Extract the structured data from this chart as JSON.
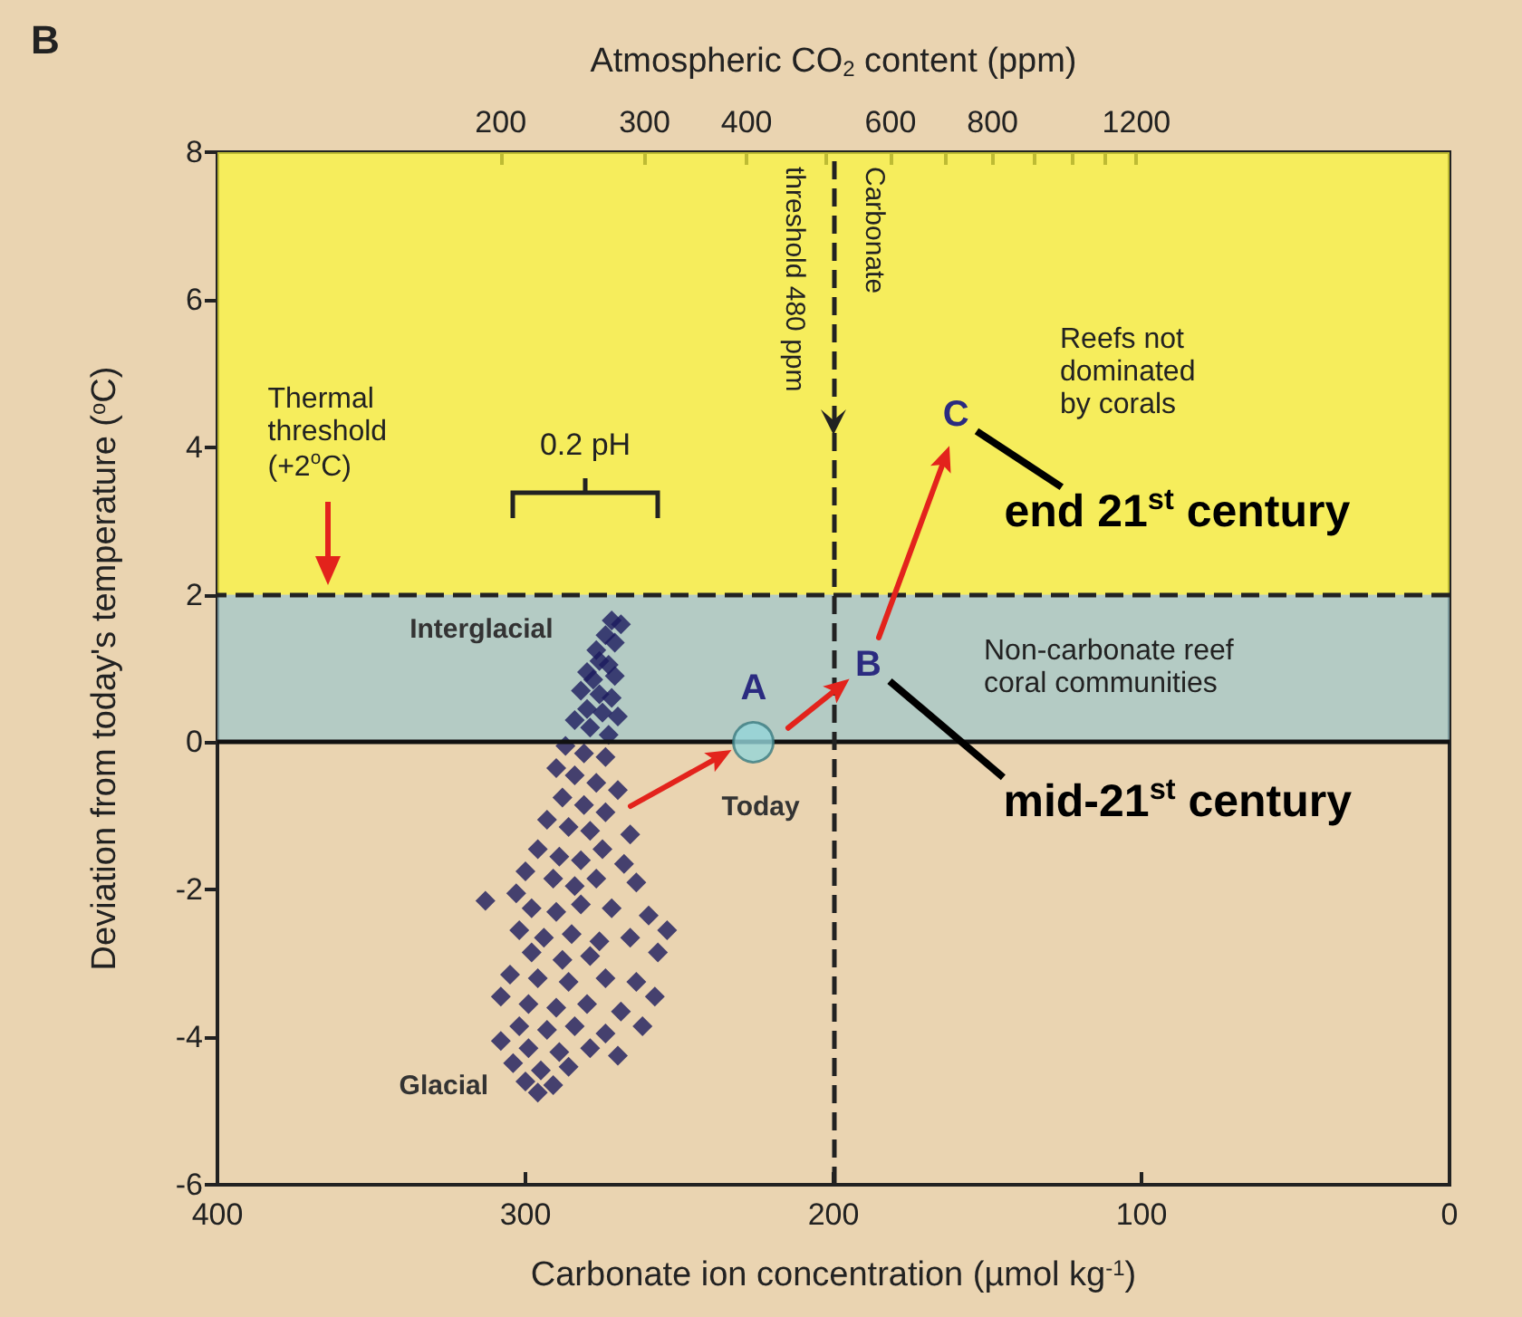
{
  "chart_data": {
    "type": "scatter",
    "title": "B",
    "xlabel": "Carbonate ion concentration (µmol kg$^{-1}$)",
    "x2label": "Atmospheric CO$_{2}$ content (ppm)",
    "ylabel": "Deviation from today's temperature ($^{o}$C)",
    "xlim": [
      400,
      0
    ],
    "xticks": [
      400,
      300,
      200,
      100,
      0
    ],
    "x2lim": [
      90,
      2900
    ],
    "log": "x2",
    "x2ticks": [
      200,
      300,
      400,
      {
        "value": 500,
        "label": null
      },
      600,
      {
        "value": 700,
        "label": null
      },
      800,
      {
        "value": 900,
        "label": null
      },
      {
        "value": 1000,
        "label": null
      },
      {
        "value": 1100,
        "label": null
      },
      1200
    ],
    "ylim": [
      -6,
      8
    ],
    "yticks": [
      -6,
      -4,
      -2,
      0,
      2,
      4,
      6,
      8
    ],
    "grid": false,
    "marker": "diamond",
    "series": [
      {
        "type": "scatter",
        "color": "#1c1a5e",
        "x": [
          272,
          269,
          274,
          271,
          277,
          276,
          273,
          280,
          278,
          271,
          282,
          276,
          272,
          280,
          275,
          284,
          270,
          279,
          273,
          287,
          281,
          274,
          290,
          284,
          277,
          270,
          288,
          281,
          274,
          293,
          286,
          279,
          266,
          296,
          289,
          282,
          275,
          268,
          300,
          291,
          284,
          277,
          264,
          313,
          303,
          298,
          290,
          282,
          272,
          260,
          254,
          302,
          294,
          285,
          276,
          266,
          257,
          298,
          288,
          279,
          305,
          296,
          286,
          274,
          264,
          258,
          308,
          299,
          290,
          280,
          269,
          302,
          293,
          284,
          274,
          262,
          308,
          299,
          289,
          279,
          270,
          304,
          295,
          286,
          300,
          291,
          296
        ],
        "values": [
          1.65,
          1.6,
          1.45,
          1.35,
          1.25,
          1.1,
          1.05,
          0.95,
          0.85,
          0.9,
          0.7,
          0.65,
          0.6,
          0.45,
          0.4,
          0.3,
          0.35,
          0.2,
          0.1,
          -0.05,
          -0.15,
          -0.2,
          -0.35,
          -0.45,
          -0.55,
          -0.65,
          -0.75,
          -0.85,
          -0.95,
          -1.05,
          -1.15,
          -1.2,
          -1.25,
          -1.45,
          -1.55,
          -1.6,
          -1.45,
          -1.65,
          -1.75,
          -1.85,
          -1.95,
          -1.85,
          -1.9,
          -2.15,
          -2.05,
          -2.25,
          -2.3,
          -2.2,
          -2.25,
          -2.35,
          -2.55,
          -2.55,
          -2.65,
          -2.6,
          -2.7,
          -2.65,
          -2.85,
          -2.85,
          -2.95,
          -2.9,
          -3.15,
          -3.2,
          -3.25,
          -3.2,
          -3.25,
          -3.45,
          -3.45,
          -3.55,
          -3.6,
          -3.55,
          -3.65,
          -3.85,
          -3.9,
          -3.85,
          -3.95,
          -3.85,
          -4.05,
          -4.15,
          -4.2,
          -4.15,
          -4.25,
          -4.35,
          -4.45,
          -4.4,
          -4.6,
          -4.65,
          -4.75
        ]
      },
      {
        "type": "scatter",
        "color": "#93d5da",
        "marker": "circle",
        "x": [
          226
        ],
        "values": [
          0
        ]
      }
    ],
    "bands": [
      {
        "axis": "y",
        "from": 0,
        "to": 2,
        "color": "#9fc8cc",
        "label": "Non-carbonate reef coral communities"
      },
      {
        "axis": "y",
        "from": 2,
        "to": 8,
        "color": "#fbf63c",
        "label": "Reefs not dominated by corals"
      }
    ],
    "ref_lines": [
      {
        "axis": "y",
        "value": 0,
        "color": "#111111",
        "line_style": "solid"
      },
      {
        "axis": "y",
        "value": 2,
        "color": "#222222",
        "line_style": "dashed"
      },
      {
        "axis": "x",
        "value": 200,
        "color": "#222222",
        "line_style": "dashed",
        "label": "Carbonate threshold 480 ppm"
      }
    ],
    "annotations": [
      {
        "text": "A",
        "x": 226,
        "y": 0
      },
      {
        "text": "Today",
        "x": 226,
        "y": 0
      },
      "B",
      "C",
      "end 21$^{st}$ century",
      "mid-21$^{st}$ century",
      {
        "text": "Interglacial",
        "x": 272,
        "y": 1.65
      },
      {
        "text": "Glacial",
        "x": 296,
        "y": -4.75
      },
      "0.2 pH",
      "Thermal threshold (+2$^{o}$C)"
    ]
  }
}
